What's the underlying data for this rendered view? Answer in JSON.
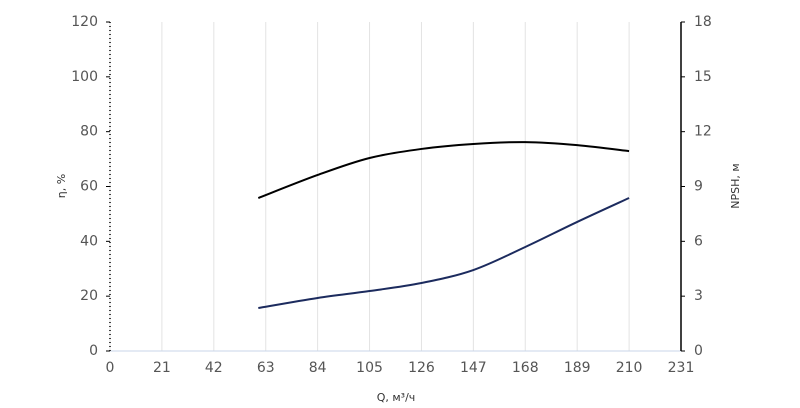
{
  "chart_data": {
    "type": "line",
    "x_label": "Q, м³/ч",
    "y_label": "η, %",
    "y2_label": "NPSH, м",
    "x": [
      60,
      84,
      105,
      126,
      147,
      168,
      189,
      210
    ],
    "series": [
      {
        "color": "#000000",
        "values": [
          55.8,
          64.2,
          70.4,
          73.7,
          75.5,
          76.2,
          75.1,
          72.9
        ]
      },
      {
        "color": "#1c2b5e",
        "axis": "y2",
        "values": [
          2.35,
          2.9,
          3.28,
          3.72,
          4.43,
          5.69,
          7.06,
          8.37
        ]
      }
    ],
    "xlim": [
      0,
      231
    ],
    "xticks": [
      0,
      21,
      42,
      63,
      84,
      105,
      126,
      147,
      168,
      189,
      210,
      231
    ],
    "ylim": [
      0,
      120
    ],
    "yticks": [
      0,
      20,
      40,
      60,
      80,
      100,
      120
    ],
    "y2lim": [
      0,
      18
    ],
    "y2ticks": [
      0,
      3,
      6,
      9,
      12,
      15,
      18
    ],
    "grid": true
  }
}
